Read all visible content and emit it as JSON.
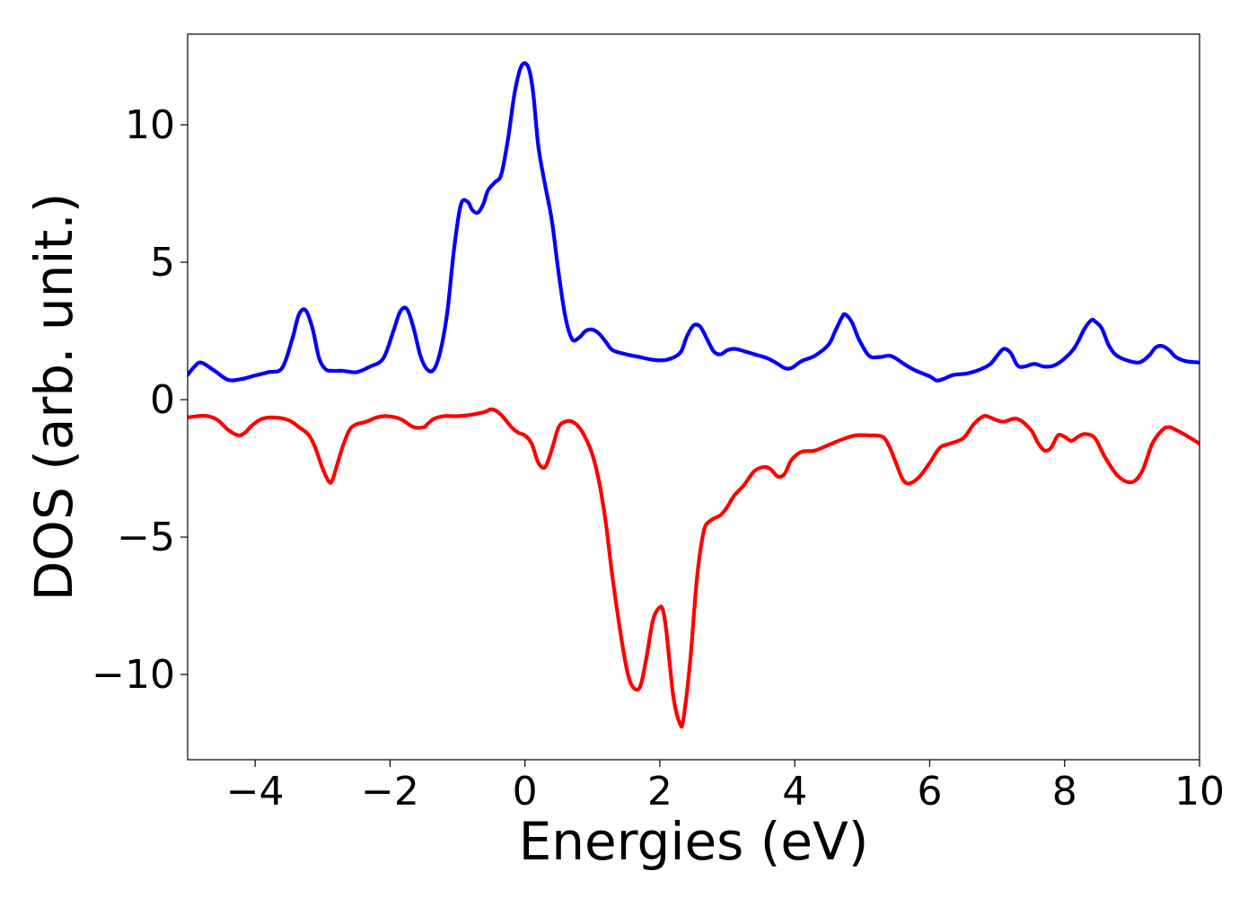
{
  "chart_data": {
    "type": "line",
    "title": "",
    "xlabel": "Energies (eV)",
    "ylabel": "DOS (arb. unit.)",
    "xlim": [
      -5,
      10
    ],
    "ylim": [
      -13.1,
      13.3
    ],
    "xticks": [
      -4,
      -2,
      0,
      2,
      4,
      6,
      8,
      10
    ],
    "yticks": [
      -10,
      -5,
      0,
      5,
      10
    ],
    "xtick_labels": [
      "−4",
      "−2",
      "0",
      "2",
      "4",
      "6",
      "8",
      "10"
    ],
    "ytick_labels": [
      "−10",
      "−5",
      "0",
      "5",
      "10"
    ],
    "grid": false,
    "legend": "none",
    "series": [
      {
        "color": "#0000ff",
        "x": [
          -5.0,
          -4.9,
          -4.8,
          -4.6,
          -4.4,
          -4.2,
          -4.0,
          -3.8,
          -3.6,
          -3.45,
          -3.35,
          -3.25,
          -3.15,
          -3.05,
          -2.95,
          -2.85,
          -2.7,
          -2.5,
          -2.3,
          -2.1,
          -1.95,
          -1.85,
          -1.75,
          -1.65,
          -1.55,
          -1.45,
          -1.35,
          -1.25,
          -1.15,
          -1.05,
          -0.95,
          -0.85,
          -0.78,
          -0.7,
          -0.62,
          -0.55,
          -0.45,
          -0.35,
          -0.25,
          -0.15,
          -0.05,
          0.05,
          0.12,
          0.2,
          0.3,
          0.4,
          0.5,
          0.6,
          0.7,
          0.8,
          0.9,
          1.0,
          1.1,
          1.2,
          1.3,
          1.5,
          1.7,
          1.9,
          2.1,
          2.3,
          2.4,
          2.5,
          2.6,
          2.7,
          2.8,
          2.9,
          3.0,
          3.1,
          3.2,
          3.4,
          3.6,
          3.75,
          3.85,
          3.95,
          4.1,
          4.3,
          4.5,
          4.6,
          4.7,
          4.75,
          4.85,
          4.95,
          5.1,
          5.25,
          5.4,
          5.5,
          5.65,
          5.8,
          6.0,
          6.1,
          6.2,
          6.35,
          6.55,
          6.75,
          6.9,
          7.0,
          7.1,
          7.2,
          7.3,
          7.4,
          7.55,
          7.7,
          7.85,
          8.0,
          8.15,
          8.3,
          8.4,
          8.45,
          8.55,
          8.65,
          8.75,
          8.9,
          9.1,
          9.25,
          9.35,
          9.45,
          9.55,
          9.65,
          9.8,
          10.0
        ],
        "y": [
          0.9,
          1.2,
          1.35,
          1.05,
          0.72,
          0.75,
          0.88,
          1.0,
          1.15,
          2.2,
          3.1,
          3.25,
          2.6,
          1.5,
          1.1,
          1.05,
          1.05,
          1.0,
          1.2,
          1.5,
          2.5,
          3.2,
          3.3,
          2.6,
          1.6,
          1.1,
          1.1,
          1.8,
          3.2,
          5.5,
          7.1,
          7.2,
          6.9,
          6.8,
          7.1,
          7.6,
          7.9,
          8.2,
          9.5,
          11.2,
          12.15,
          12.1,
          11.2,
          9.2,
          7.8,
          6.5,
          4.6,
          3.0,
          2.2,
          2.25,
          2.5,
          2.55,
          2.4,
          2.1,
          1.8,
          1.65,
          1.55,
          1.45,
          1.45,
          1.7,
          2.3,
          2.7,
          2.65,
          2.2,
          1.75,
          1.65,
          1.8,
          1.85,
          1.8,
          1.65,
          1.5,
          1.3,
          1.15,
          1.15,
          1.4,
          1.6,
          2.0,
          2.5,
          3.0,
          3.1,
          2.8,
          2.2,
          1.6,
          1.55,
          1.6,
          1.5,
          1.25,
          1.05,
          0.85,
          0.7,
          0.75,
          0.9,
          0.95,
          1.1,
          1.3,
          1.6,
          1.85,
          1.7,
          1.25,
          1.2,
          1.3,
          1.2,
          1.25,
          1.5,
          1.9,
          2.6,
          2.9,
          2.85,
          2.6,
          2.0,
          1.65,
          1.45,
          1.35,
          1.6,
          1.9,
          1.95,
          1.8,
          1.55,
          1.4,
          1.35
        ]
      },
      {
        "color": "#ff0000",
        "x": [
          -5.0,
          -4.85,
          -4.7,
          -4.55,
          -4.4,
          -4.25,
          -4.15,
          -4.05,
          -3.9,
          -3.7,
          -3.5,
          -3.35,
          -3.2,
          -3.1,
          -3.0,
          -2.9,
          -2.85,
          -2.8,
          -2.7,
          -2.6,
          -2.5,
          -2.35,
          -2.2,
          -2.05,
          -1.85,
          -1.65,
          -1.5,
          -1.45,
          -1.35,
          -1.2,
          -1.0,
          -0.8,
          -0.6,
          -0.5,
          -0.4,
          -0.3,
          -0.2,
          -0.1,
          0.0,
          0.1,
          0.2,
          0.3,
          0.4,
          0.5,
          0.6,
          0.7,
          0.8,
          0.9,
          1.0,
          1.1,
          1.2,
          1.3,
          1.45,
          1.55,
          1.65,
          1.72,
          1.8,
          1.9,
          2.0,
          2.05,
          2.1,
          2.2,
          2.3,
          2.35,
          2.45,
          2.55,
          2.65,
          2.75,
          2.9,
          3.0,
          3.1,
          3.25,
          3.4,
          3.55,
          3.65,
          3.75,
          3.85,
          3.95,
          4.1,
          4.3,
          4.5,
          4.7,
          4.9,
          5.1,
          5.3,
          5.4,
          5.5,
          5.6,
          5.7,
          5.85,
          6.0,
          6.15,
          6.3,
          6.5,
          6.65,
          6.8,
          6.9,
          7.0,
          7.1,
          7.3,
          7.5,
          7.6,
          7.7,
          7.8,
          7.9,
          8.0,
          8.1,
          8.2,
          8.3,
          8.45,
          8.6,
          8.8,
          9.0,
          9.15,
          9.3,
          9.45,
          9.55,
          9.65,
          9.8,
          10.0
        ],
        "y": [
          -0.65,
          -0.6,
          -0.6,
          -0.75,
          -1.1,
          -1.3,
          -1.2,
          -0.95,
          -0.7,
          -0.65,
          -0.75,
          -1.0,
          -1.3,
          -1.8,
          -2.5,
          -3.0,
          -2.9,
          -2.5,
          -1.7,
          -1.1,
          -0.9,
          -0.8,
          -0.65,
          -0.6,
          -0.7,
          -1.0,
          -1.0,
          -0.9,
          -0.7,
          -0.6,
          -0.6,
          -0.55,
          -0.45,
          -0.35,
          -0.45,
          -0.7,
          -1.0,
          -1.2,
          -1.3,
          -1.6,
          -2.3,
          -2.45,
          -1.8,
          -1.0,
          -0.8,
          -0.8,
          -1.0,
          -1.4,
          -2.0,
          -3.0,
          -4.5,
          -6.5,
          -9.0,
          -10.2,
          -10.55,
          -10.35,
          -9.4,
          -8.0,
          -7.55,
          -7.7,
          -8.5,
          -10.8,
          -11.8,
          -11.6,
          -9.5,
          -6.5,
          -4.8,
          -4.4,
          -4.2,
          -3.9,
          -3.5,
          -3.1,
          -2.6,
          -2.45,
          -2.55,
          -2.8,
          -2.7,
          -2.2,
          -1.9,
          -1.85,
          -1.65,
          -1.45,
          -1.3,
          -1.3,
          -1.35,
          -1.7,
          -2.3,
          -2.9,
          -3.05,
          -2.8,
          -2.3,
          -1.75,
          -1.6,
          -1.4,
          -0.9,
          -0.6,
          -0.65,
          -0.75,
          -0.8,
          -0.7,
          -1.1,
          -1.55,
          -1.85,
          -1.75,
          -1.3,
          -1.35,
          -1.5,
          -1.35,
          -1.25,
          -1.4,
          -2.1,
          -2.8,
          -3.0,
          -2.6,
          -1.6,
          -1.1,
          -1.0,
          -1.1,
          -1.3,
          -1.6
        ]
      }
    ]
  }
}
